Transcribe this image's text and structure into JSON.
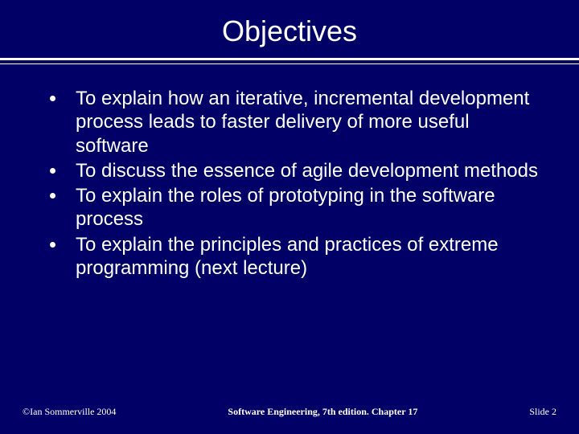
{
  "slide": {
    "title": "Objectives",
    "bullets": [
      "To explain how an iterative, incremental development process leads to faster delivery of more useful software",
      "To discuss the essence of agile development methods",
      "To explain the roles of prototyping in the software process",
      "To explain the principles and practices of extreme programming (next lecture)"
    ],
    "footer": {
      "left": "©Ian Sommerville 2004",
      "center": "Software Engineering, 7th edition. Chapter 17",
      "right_prefix": "Slide ",
      "slide_number": "2"
    },
    "colors": {
      "background": "#000066",
      "text": "#ffffff",
      "divider": "#ffffff",
      "bullet": "#ffffff"
    },
    "typography": {
      "title_fontsize": 36,
      "body_fontsize": 24,
      "footer_fontsize": 12,
      "title_font": "Arial",
      "body_font": "Arial",
      "footer_font": "Times New Roman"
    }
  }
}
